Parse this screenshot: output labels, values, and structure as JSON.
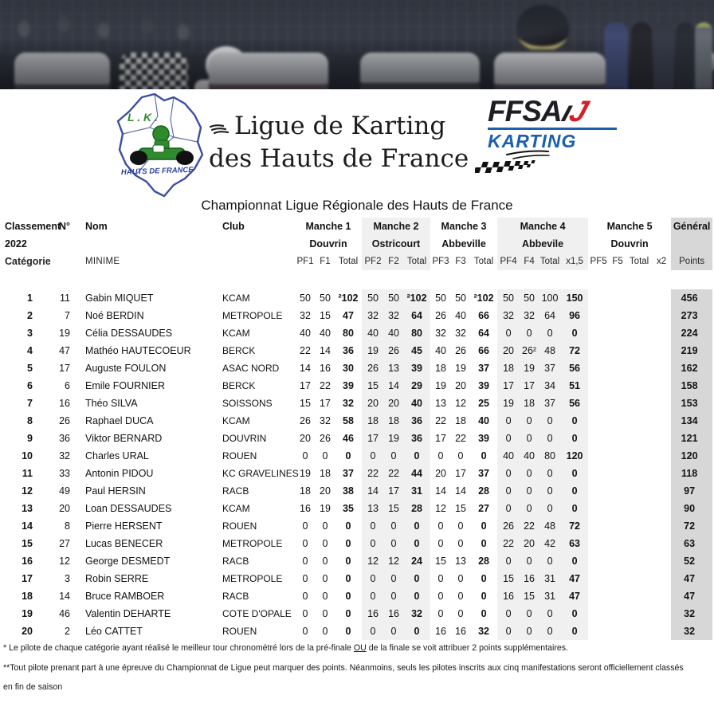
{
  "logos": {
    "lk_abbr": "L . K .",
    "lk_region": "HAUTS DE FRANCE",
    "league_line1": "Ligue de Karting",
    "league_line2": "des Hauts de France",
    "ffsa_name": "FFSA",
    "ffsa_karting": "KARTING"
  },
  "icons": {
    "speed_lines_icon": "speed-strokes",
    "checkered_swoosh_icon": "checkered-flag-swoosh"
  },
  "colors": {
    "band_light": "#f0f0f0",
    "band_general": "#d7d7d7",
    "karting_blue": "#1b5fae",
    "ffsa_red": "#d42027",
    "lk_green": "#2e8b2e",
    "map_blue": "#3b4ea0"
  },
  "subtitle": "Championnat Ligue Régionale des Hauts de France",
  "table": {
    "left_header": {
      "line1": "Classement",
      "line2": "2022",
      "line3": "Catégorie"
    },
    "col_num": "N°",
    "col_name": "Nom",
    "col_club": "Club",
    "category": "MINIME",
    "general_label": "Général",
    "points_label": "Points",
    "manches": [
      {
        "label": "Manche 1",
        "venue": "Douvrin",
        "cols": [
          "PF1",
          "F1",
          "Total"
        ]
      },
      {
        "label": "Manche 2",
        "venue": "Ostricourt",
        "cols": [
          "PF2",
          "F2",
          "Total"
        ]
      },
      {
        "label": "Manche 3",
        "venue": "Abbeville",
        "cols": [
          "PF3",
          "F3",
          "Total"
        ]
      },
      {
        "label": "Manche 4",
        "venue": "Abbevile",
        "cols": [
          "PF4",
          "F4",
          "Total",
          "x1,5"
        ]
      },
      {
        "label": "Manche 5",
        "venue": "Douvrin",
        "cols": [
          "PF5",
          "F5",
          "Total",
          "x2"
        ]
      }
    ],
    "rows": [
      {
        "rank": "1",
        "num": "11",
        "name": "Gabin MIQUET",
        "club": "KCAM",
        "m1": [
          "50",
          "50",
          "²102"
        ],
        "m2": [
          "50",
          "50",
          "²102"
        ],
        "m3": [
          "50",
          "50",
          "²102"
        ],
        "m4": [
          "50",
          "50",
          "100",
          "150"
        ],
        "m5": [
          "",
          "",
          "",
          ""
        ],
        "points": "456"
      },
      {
        "rank": "2",
        "num": "7",
        "name": "Noé BERDIN",
        "club": "METROPOLE",
        "m1": [
          "32",
          "15",
          "47"
        ],
        "m2": [
          "32",
          "32",
          "64"
        ],
        "m3": [
          "26",
          "40",
          "66"
        ],
        "m4": [
          "32",
          "32",
          "64",
          "96"
        ],
        "m5": [
          "",
          "",
          "",
          ""
        ],
        "points": "273"
      },
      {
        "rank": "3",
        "num": "19",
        "name": "Célia DESSAUDES",
        "club": "KCAM",
        "m1": [
          "40",
          "40",
          "80"
        ],
        "m2": [
          "40",
          "40",
          "80"
        ],
        "m3": [
          "32",
          "32",
          "64"
        ],
        "m4": [
          "0",
          "0",
          "0",
          "0"
        ],
        "m5": [
          "",
          "",
          "",
          ""
        ],
        "points": "224"
      },
      {
        "rank": "4",
        "num": "47",
        "name": "Mathéo HAUTECOEUR",
        "club": "BERCK",
        "m1": [
          "22",
          "14",
          "36"
        ],
        "m2": [
          "19",
          "26",
          "45"
        ],
        "m3": [
          "40",
          "26",
          "66"
        ],
        "m4": [
          "20",
          "26²",
          "48",
          "72"
        ],
        "m5": [
          "",
          "",
          "",
          ""
        ],
        "points": "219"
      },
      {
        "rank": "5",
        "num": "17",
        "name": "Auguste FOULON",
        "club": "ASAC NORD",
        "m1": [
          "14",
          "16",
          "30"
        ],
        "m2": [
          "26",
          "13",
          "39"
        ],
        "m3": [
          "18",
          "19",
          "37"
        ],
        "m4": [
          "18",
          "19",
          "37",
          "56"
        ],
        "m5": [
          "",
          "",
          "",
          ""
        ],
        "points": "162"
      },
      {
        "rank": "6",
        "num": "6",
        "name": "Emile FOURNIER",
        "club": "BERCK",
        "m1": [
          "17",
          "22",
          "39"
        ],
        "m2": [
          "15",
          "14",
          "29"
        ],
        "m3": [
          "19",
          "20",
          "39"
        ],
        "m4": [
          "17",
          "17",
          "34",
          "51"
        ],
        "m5": [
          "",
          "",
          "",
          ""
        ],
        "points": "158"
      },
      {
        "rank": "7",
        "num": "16",
        "name": "Théo SILVA",
        "club": "SOISSONS",
        "m1": [
          "15",
          "17",
          "32"
        ],
        "m2": [
          "20",
          "20",
          "40"
        ],
        "m3": [
          "13",
          "12",
          "25"
        ],
        "m4": [
          "19",
          "18",
          "37",
          "56"
        ],
        "m5": [
          "",
          "",
          "",
          ""
        ],
        "points": "153"
      },
      {
        "rank": "8",
        "num": "26",
        "name": "Raphael DUCA",
        "club": "KCAM",
        "m1": [
          "26",
          "32",
          "58"
        ],
        "m2": [
          "18",
          "18",
          "36"
        ],
        "m3": [
          "22",
          "18",
          "40"
        ],
        "m4": [
          "0",
          "0",
          "0",
          "0"
        ],
        "m5": [
          "",
          "",
          "",
          ""
        ],
        "points": "134"
      },
      {
        "rank": "9",
        "num": "36",
        "name": "Viktor BERNARD",
        "club": "DOUVRIN",
        "m1": [
          "20",
          "26",
          "46"
        ],
        "m2": [
          "17",
          "19",
          "36"
        ],
        "m3": [
          "17",
          "22",
          "39"
        ],
        "m4": [
          "0",
          "0",
          "0",
          "0"
        ],
        "m5": [
          "",
          "",
          "",
          ""
        ],
        "points": "121"
      },
      {
        "rank": "10",
        "num": "32",
        "name": "Charles URAL",
        "club": "ROUEN",
        "m1": [
          "0",
          "0",
          "0"
        ],
        "m2": [
          "0",
          "0",
          "0"
        ],
        "m3": [
          "0",
          "0",
          "0"
        ],
        "m4": [
          "40",
          "40",
          "80",
          "120"
        ],
        "m5": [
          "",
          "",
          "",
          ""
        ],
        "points": "120"
      },
      {
        "rank": "11",
        "num": "33",
        "name": "Antonin PIDOU",
        "club": "KC GRAVELINES",
        "m1": [
          "19",
          "18",
          "37"
        ],
        "m2": [
          "22",
          "22",
          "44"
        ],
        "m3": [
          "20",
          "17",
          "37"
        ],
        "m4": [
          "0",
          "0",
          "0",
          "0"
        ],
        "m5": [
          "",
          "",
          "",
          ""
        ],
        "points": "118"
      },
      {
        "rank": "12",
        "num": "49",
        "name": "Paul HERSIN",
        "club": "RACB",
        "m1": [
          "18",
          "20",
          "38"
        ],
        "m2": [
          "14",
          "17",
          "31"
        ],
        "m3": [
          "14",
          "14",
          "28"
        ],
        "m4": [
          "0",
          "0",
          "0",
          "0"
        ],
        "m5": [
          "",
          "",
          "",
          ""
        ],
        "points": "97"
      },
      {
        "rank": "13",
        "num": "20",
        "name": "Loan DESSAUDES",
        "club": "KCAM",
        "m1": [
          "16",
          "19",
          "35"
        ],
        "m2": [
          "13",
          "15",
          "28"
        ],
        "m3": [
          "12",
          "15",
          "27"
        ],
        "m4": [
          "0",
          "0",
          "0",
          "0"
        ],
        "m5": [
          "",
          "",
          "",
          ""
        ],
        "points": "90"
      },
      {
        "rank": "14",
        "num": "8",
        "name": "Pierre HERSENT",
        "club": "ROUEN",
        "m1": [
          "0",
          "0",
          "0"
        ],
        "m2": [
          "0",
          "0",
          "0"
        ],
        "m3": [
          "0",
          "0",
          "0"
        ],
        "m4": [
          "26",
          "22",
          "48",
          "72"
        ],
        "m5": [
          "",
          "",
          "",
          ""
        ],
        "points": "72"
      },
      {
        "rank": "15",
        "num": "27",
        "name": "Lucas BENECER",
        "club": "METROPOLE",
        "m1": [
          "0",
          "0",
          "0"
        ],
        "m2": [
          "0",
          "0",
          "0"
        ],
        "m3": [
          "0",
          "0",
          "0"
        ],
        "m4": [
          "22",
          "20",
          "42",
          "63"
        ],
        "m5": [
          "",
          "",
          "",
          ""
        ],
        "points": "63"
      },
      {
        "rank": "16",
        "num": "12",
        "name": "George DESMEDT",
        "club": "RACB",
        "m1": [
          "0",
          "0",
          "0"
        ],
        "m2": [
          "12",
          "12",
          "24"
        ],
        "m3": [
          "15",
          "13",
          "28"
        ],
        "m4": [
          "0",
          "0",
          "0",
          "0"
        ],
        "m5": [
          "",
          "",
          "",
          ""
        ],
        "points": "52"
      },
      {
        "rank": "17",
        "num": "3",
        "name": "Robin SERRE",
        "club": "METROPOLE",
        "m1": [
          "0",
          "0",
          "0"
        ],
        "m2": [
          "0",
          "0",
          "0"
        ],
        "m3": [
          "0",
          "0",
          "0"
        ],
        "m4": [
          "15",
          "16",
          "31",
          "47"
        ],
        "m5": [
          "",
          "",
          "",
          ""
        ],
        "points": "47"
      },
      {
        "rank": "18",
        "num": "14",
        "name": "Bruce RAMBOER",
        "club": "RACB",
        "m1": [
          "0",
          "0",
          "0"
        ],
        "m2": [
          "0",
          "0",
          "0"
        ],
        "m3": [
          "0",
          "0",
          "0"
        ],
        "m4": [
          "16",
          "15",
          "31",
          "47"
        ],
        "m5": [
          "",
          "",
          "",
          ""
        ],
        "points": "47"
      },
      {
        "rank": "19",
        "num": "46",
        "name": "Valentin DEHARTE",
        "club": "COTE D'OPALE",
        "m1": [
          "0",
          "0",
          "0"
        ],
        "m2": [
          "16",
          "16",
          "32"
        ],
        "m3": [
          "0",
          "0",
          "0"
        ],
        "m4": [
          "0",
          "0",
          "0",
          "0"
        ],
        "m5": [
          "",
          "",
          "",
          ""
        ],
        "points": "32"
      },
      {
        "rank": "20",
        "num": "2",
        "name": "Léo CATTET",
        "club": "ROUEN",
        "m1": [
          "0",
          "0",
          "0"
        ],
        "m2": [
          "0",
          "0",
          "0"
        ],
        "m3": [
          "16",
          "16",
          "32"
        ],
        "m4": [
          "0",
          "0",
          "0",
          "0"
        ],
        "m5": [
          "",
          "",
          "",
          ""
        ],
        "points": "32"
      }
    ]
  },
  "footnotes": {
    "note1_pre": "* Le pilote de chaque catégorie ayant réalisé le meilleur tour chronométré lors de la pré-finale ",
    "note1_underline": "OU",
    "note1_post": " de la finale se voit attribuer 2 points supplémentaires.",
    "note2": "**Tout pilote prenant part à une épreuve du Championnat de Ligue peut marquer des points.  Néanmoins, seuls les pilotes inscrits aux cinq manifestations seront officiellement classés",
    "note3": "en fin de saison"
  }
}
